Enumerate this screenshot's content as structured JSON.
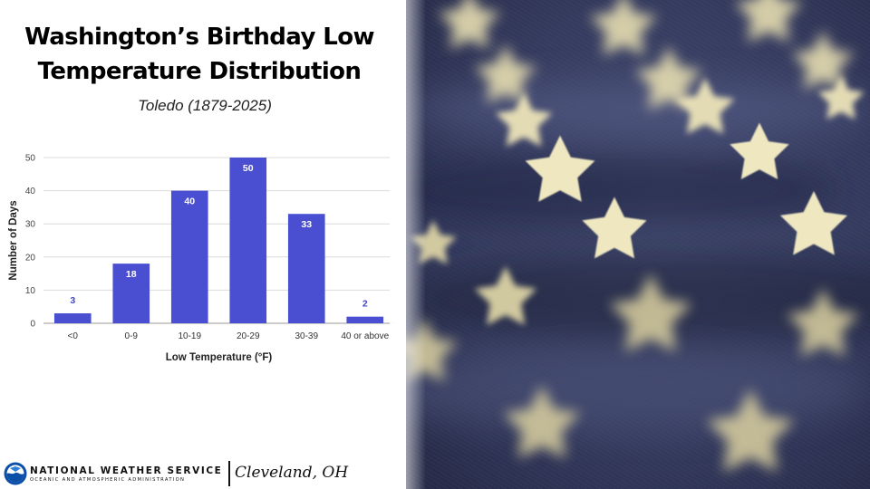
{
  "header": {
    "title_line1": "Washington’s Birthday Low",
    "title_line2": "Temperature Distribution",
    "subtitle": "Toledo (1879-2025)"
  },
  "chart_data": {
    "type": "bar",
    "categories": [
      "<0",
      "0-9",
      "10-19",
      "20-29",
      "30-39",
      "40 or above"
    ],
    "values": [
      3,
      18,
      40,
      50,
      33,
      2
    ],
    "xlabel": "Low Temperature (°F)",
    "ylabel": "Number of Days",
    "ylim": [
      0,
      50
    ],
    "yticks": [
      0,
      10,
      20,
      30,
      40,
      50
    ],
    "grid": true,
    "legend": "none",
    "data_labels": true,
    "colors": {
      "bar": "#4a4fd1",
      "label_outside": "#3f47c6",
      "label_inside": "#ffffff"
    }
  },
  "footer": {
    "agency": "NATIONAL WEATHER SERVICE",
    "agency_sub": "OCEANIC AND ATMOSPHERIC ADMINISTRATION",
    "office": "Cleveland, OH"
  },
  "photo": {
    "subject": "close-up of stars on a fabric American flag",
    "colors": {
      "fabric": "#3a4166",
      "stars": "#e8dfb4"
    }
  }
}
